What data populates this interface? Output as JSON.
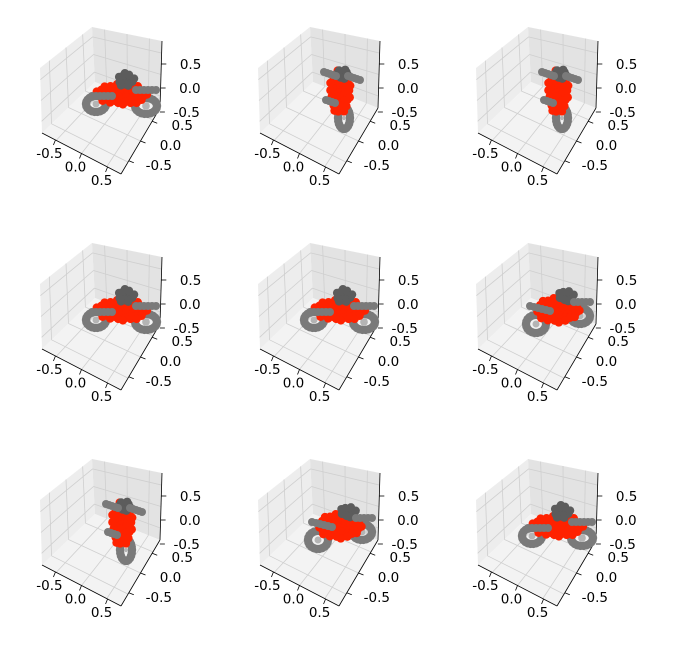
{
  "chart_data": {
    "type": "scatter",
    "projection": "3d",
    "grid": true,
    "layout": "3x3 grid of 3D subplots",
    "colors": {
      "pane_left": "#ededed",
      "pane_right": "#e3e3e3",
      "pane_floor": "#f3f3f3",
      "grid": "#cfcfcf",
      "body": "#ff2200",
      "body_dark": "#dd1a00",
      "wheel": "#7a7a7a",
      "wheel_light": "#b4b4b4",
      "rider": "#5c5c5c"
    },
    "axes": {
      "xlim": [
        -0.8,
        0.8
      ],
      "ylim": [
        -0.8,
        0.8
      ],
      "zlim": [
        -0.8,
        0.8
      ],
      "xticks": [
        "-0.5",
        "0.0",
        "0.5"
      ],
      "yticks": [
        "0.5",
        "0.0",
        "-0.5"
      ],
      "zticks": [
        "0.5",
        "0.0",
        "-0.5"
      ]
    },
    "subplots": [
      {
        "shape": "motorbike",
        "view": "side",
        "yaw": 0.0,
        "bike_color": "body",
        "wheel_color": "wheel"
      },
      {
        "shape": "motorbike",
        "view": "front",
        "yaw": 0.0,
        "bike_color": "body",
        "wheel_color": "wheel"
      },
      {
        "shape": "motorbike",
        "view": "front",
        "yaw": 0.15,
        "bike_color": "body",
        "wheel_color": "wheel"
      },
      {
        "shape": "motorbike",
        "view": "side",
        "yaw": 0.0,
        "bike_color": "body",
        "wheel_color": "wheel"
      },
      {
        "shape": "motorbike",
        "view": "side",
        "yaw": 0.1,
        "bike_color": "body",
        "wheel_color": "wheel"
      },
      {
        "shape": "motorbike",
        "view": "oblique",
        "yaw": 0.0,
        "bike_color": "body",
        "wheel_color": "wheel"
      },
      {
        "shape": "motorbike",
        "view": "front",
        "yaw": 0.0,
        "bike_color": "body",
        "wheel_color": "wheel"
      },
      {
        "shape": "motorbike",
        "view": "oblique",
        "yaw": 0.0,
        "bike_color": "body",
        "wheel_color": "wheel"
      },
      {
        "shape": "motorbike",
        "view": "side",
        "yaw": 0.0,
        "bike_color": "body",
        "wheel_color": "wheel"
      }
    ]
  }
}
